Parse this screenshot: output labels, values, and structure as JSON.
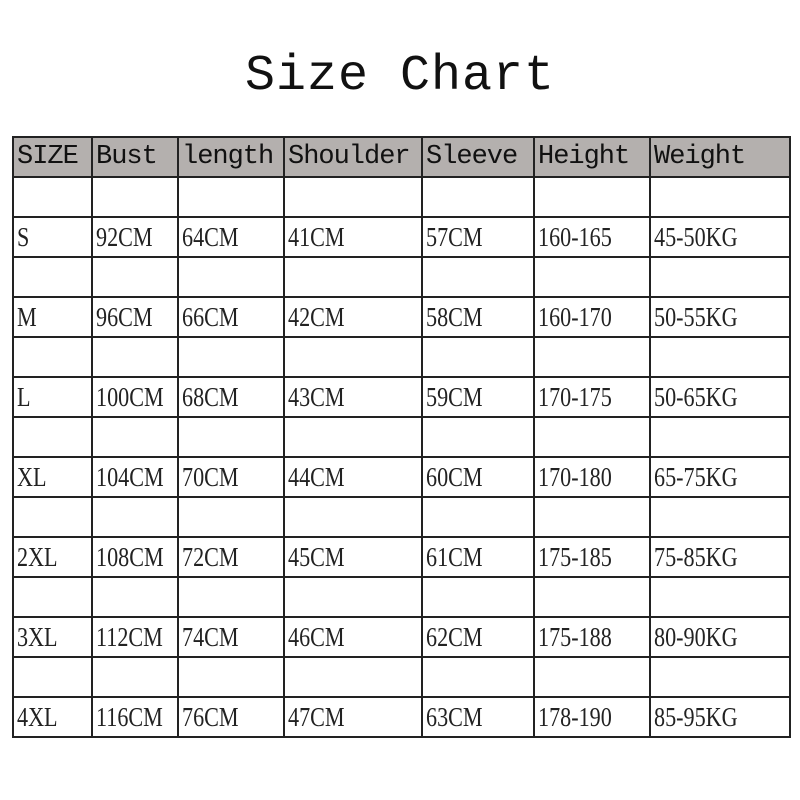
{
  "title": "Size Chart",
  "table": {
    "headers": [
      "SIZE",
      "Bust",
      "length",
      "Shoulder",
      "Sleeve",
      "Height",
      "Weight"
    ],
    "rows": [
      [
        "S",
        "92CM",
        "64CM",
        "41CM",
        "57CM",
        "160-165",
        "45-50KG"
      ],
      [
        "M",
        "96CM",
        "66CM",
        "42CM",
        "58CM",
        "160-170",
        "50-55KG"
      ],
      [
        "L",
        "100CM",
        "68CM",
        "43CM",
        "59CM",
        "170-175",
        "50-65KG"
      ],
      [
        "XL",
        "104CM",
        "70CM",
        "44CM",
        "60CM",
        "170-180",
        "65-75KG"
      ],
      [
        "2XL",
        "108CM",
        "72CM",
        "45CM",
        "61CM",
        "175-185",
        "75-85KG"
      ],
      [
        "3XL",
        "112CM",
        "74CM",
        "46CM",
        "62CM",
        "175-188",
        "80-90KG"
      ],
      [
        "4XL",
        "116CM",
        "76CM",
        "47CM",
        "63CM",
        "178-190",
        "85-95KG"
      ]
    ],
    "header_color": "#b4b0ae"
  }
}
